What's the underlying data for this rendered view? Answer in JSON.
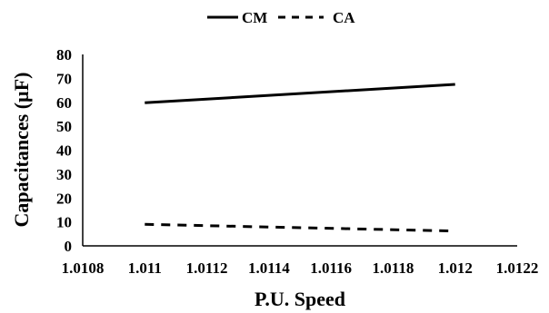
{
  "chart_data": {
    "type": "line",
    "xlabel": "P.U. Speed",
    "ylabel": "Capacitances (µF)",
    "x_ticks": [
      "1.0108",
      "1.011",
      "1.0112",
      "1.0114",
      "1.0116",
      "1.0118",
      "1.012",
      "1.0122"
    ],
    "y_ticks": [
      "0",
      "10",
      "20",
      "30",
      "40",
      "50",
      "60",
      "70",
      "80"
    ],
    "xlim": [
      1.0108,
      1.0122
    ],
    "ylim": [
      0,
      80
    ],
    "grid": false,
    "legend_position": "top-center",
    "series": [
      {
        "name": "CM",
        "style": "solid",
        "color": "#000000",
        "x": [
          1.011,
          1.012
        ],
        "y": [
          59.8,
          67.5
        ]
      },
      {
        "name": "CA",
        "style": "dashed",
        "color": "#000000",
        "x": [
          1.011,
          1.012
        ],
        "y": [
          9.0,
          6.2
        ]
      }
    ]
  }
}
